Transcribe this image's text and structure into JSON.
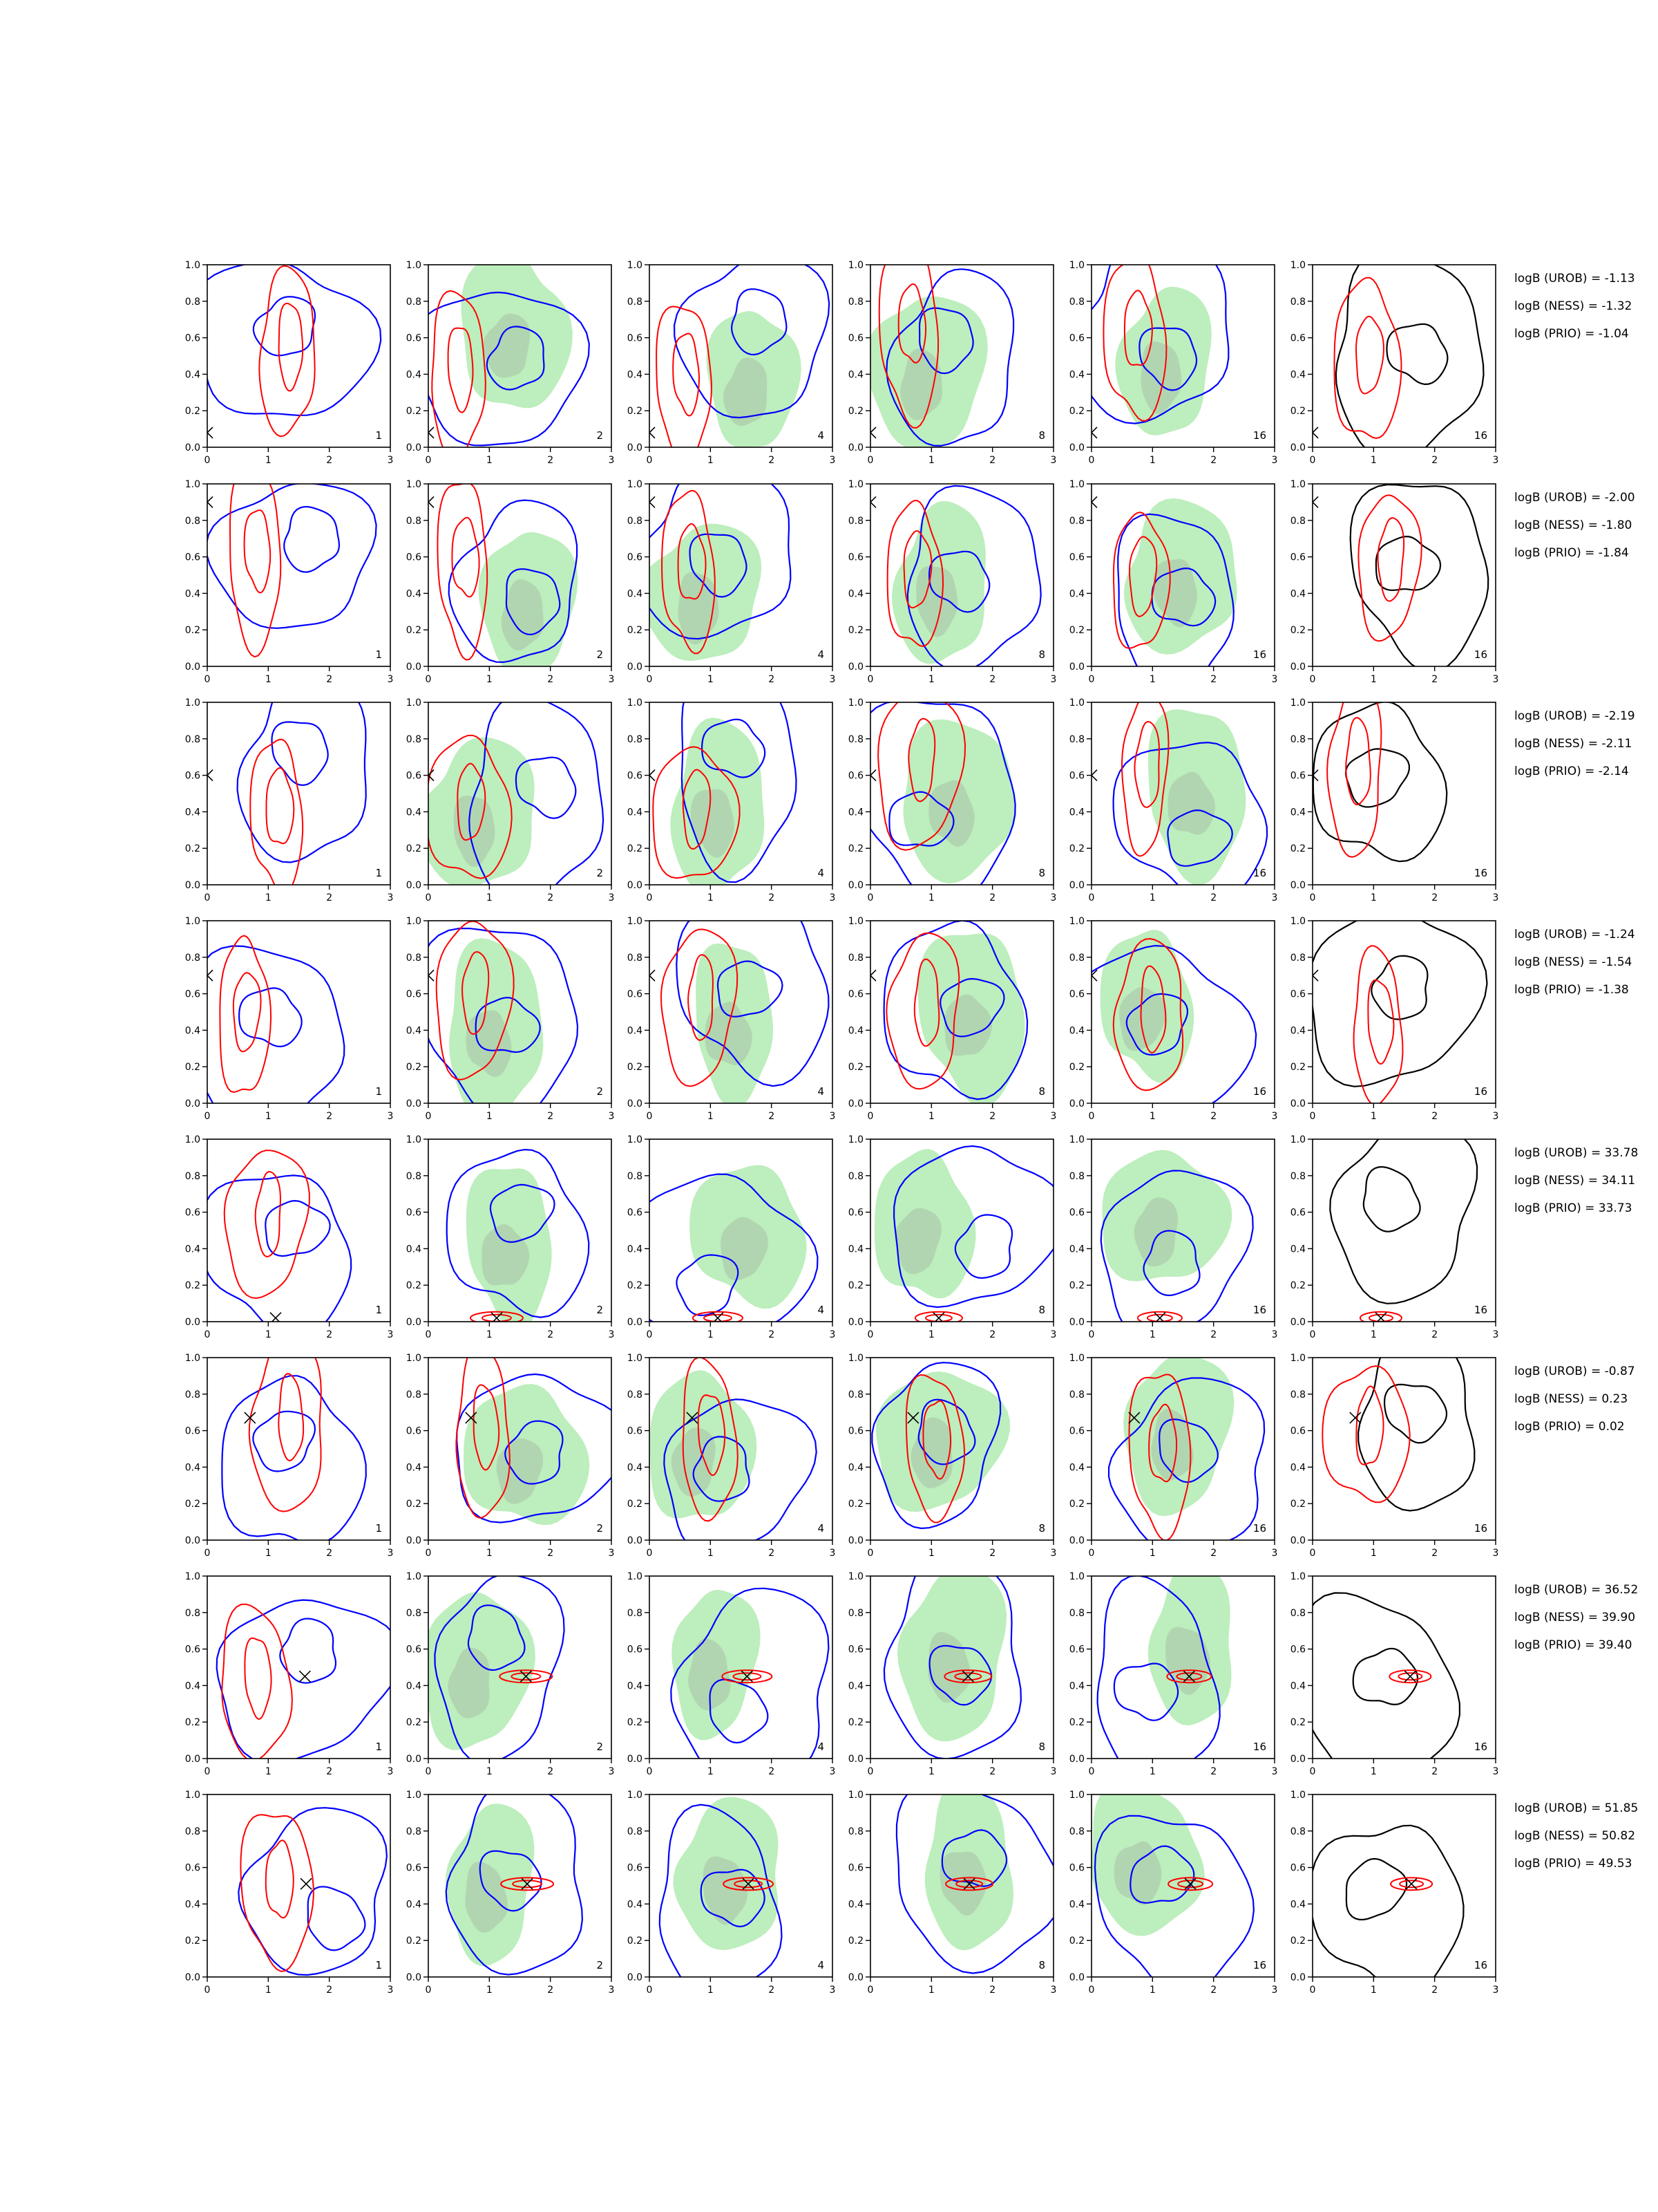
{
  "colors": {
    "blue_contour": "#0000ff",
    "red_contour": "#ff0000",
    "black_contour": "#000000",
    "green_fill": "#bdeebd",
    "grey_fill": "#9aa79a"
  },
  "chart_data": {
    "type": "contour-grid",
    "layout": {
      "rows": 8,
      "cols": 6
    },
    "axes": {
      "xlim": [
        0,
        3
      ],
      "ylim": [
        0,
        1
      ],
      "xticks": [
        "0",
        "1",
        "2",
        "3"
      ],
      "yticks": [
        "0.0",
        "0.2",
        "0.4",
        "0.6",
        "0.8",
        "1.0"
      ]
    },
    "column_labels": [
      "1",
      "2",
      "4",
      "8",
      "16",
      "16"
    ],
    "rows": [
      {
        "marker": [
          0.0,
          0.08
        ],
        "logB": [
          "logB (UROB) = -1.13",
          "logB (NESS) = -1.32",
          "logB (PRIO) = -1.04"
        ]
      },
      {
        "marker": [
          0.0,
          0.9
        ],
        "logB": [
          "logB (UROB) = -2.00",
          "logB (NESS) = -1.80",
          "logB (PRIO) = -1.84"
        ]
      },
      {
        "marker": [
          0.0,
          0.6
        ],
        "logB": [
          "logB (UROB) = -2.19",
          "logB (NESS) = -2.11",
          "logB (PRIO) = -2.14"
        ]
      },
      {
        "marker": [
          0.0,
          0.7
        ],
        "logB": [
          "logB (UROB) = -1.24",
          "logB (NESS) = -1.54",
          "logB (PRIO) = -1.38"
        ]
      },
      {
        "marker": [
          1.12,
          0.02
        ],
        "logB": [
          "logB (UROB) = 33.78",
          "logB (NESS) = 34.11",
          "logB (PRIO) = 33.73"
        ]
      },
      {
        "marker": [
          0.7,
          0.67
        ],
        "logB": [
          "logB (UROB) = -0.87",
          "logB (NESS) = 0.23",
          "logB (PRIO) = 0.02"
        ]
      },
      {
        "marker": [
          1.6,
          0.45
        ],
        "logB": [
          "logB (UROB) = 36.52",
          "logB (NESS) = 39.90",
          "logB (PRIO) = 39.40"
        ]
      },
      {
        "marker": [
          1.62,
          0.51
        ],
        "logB": [
          "logB (UROB) = 51.85",
          "logB (NESS) = 50.82",
          "logB (PRIO) = 49.53"
        ]
      }
    ]
  }
}
